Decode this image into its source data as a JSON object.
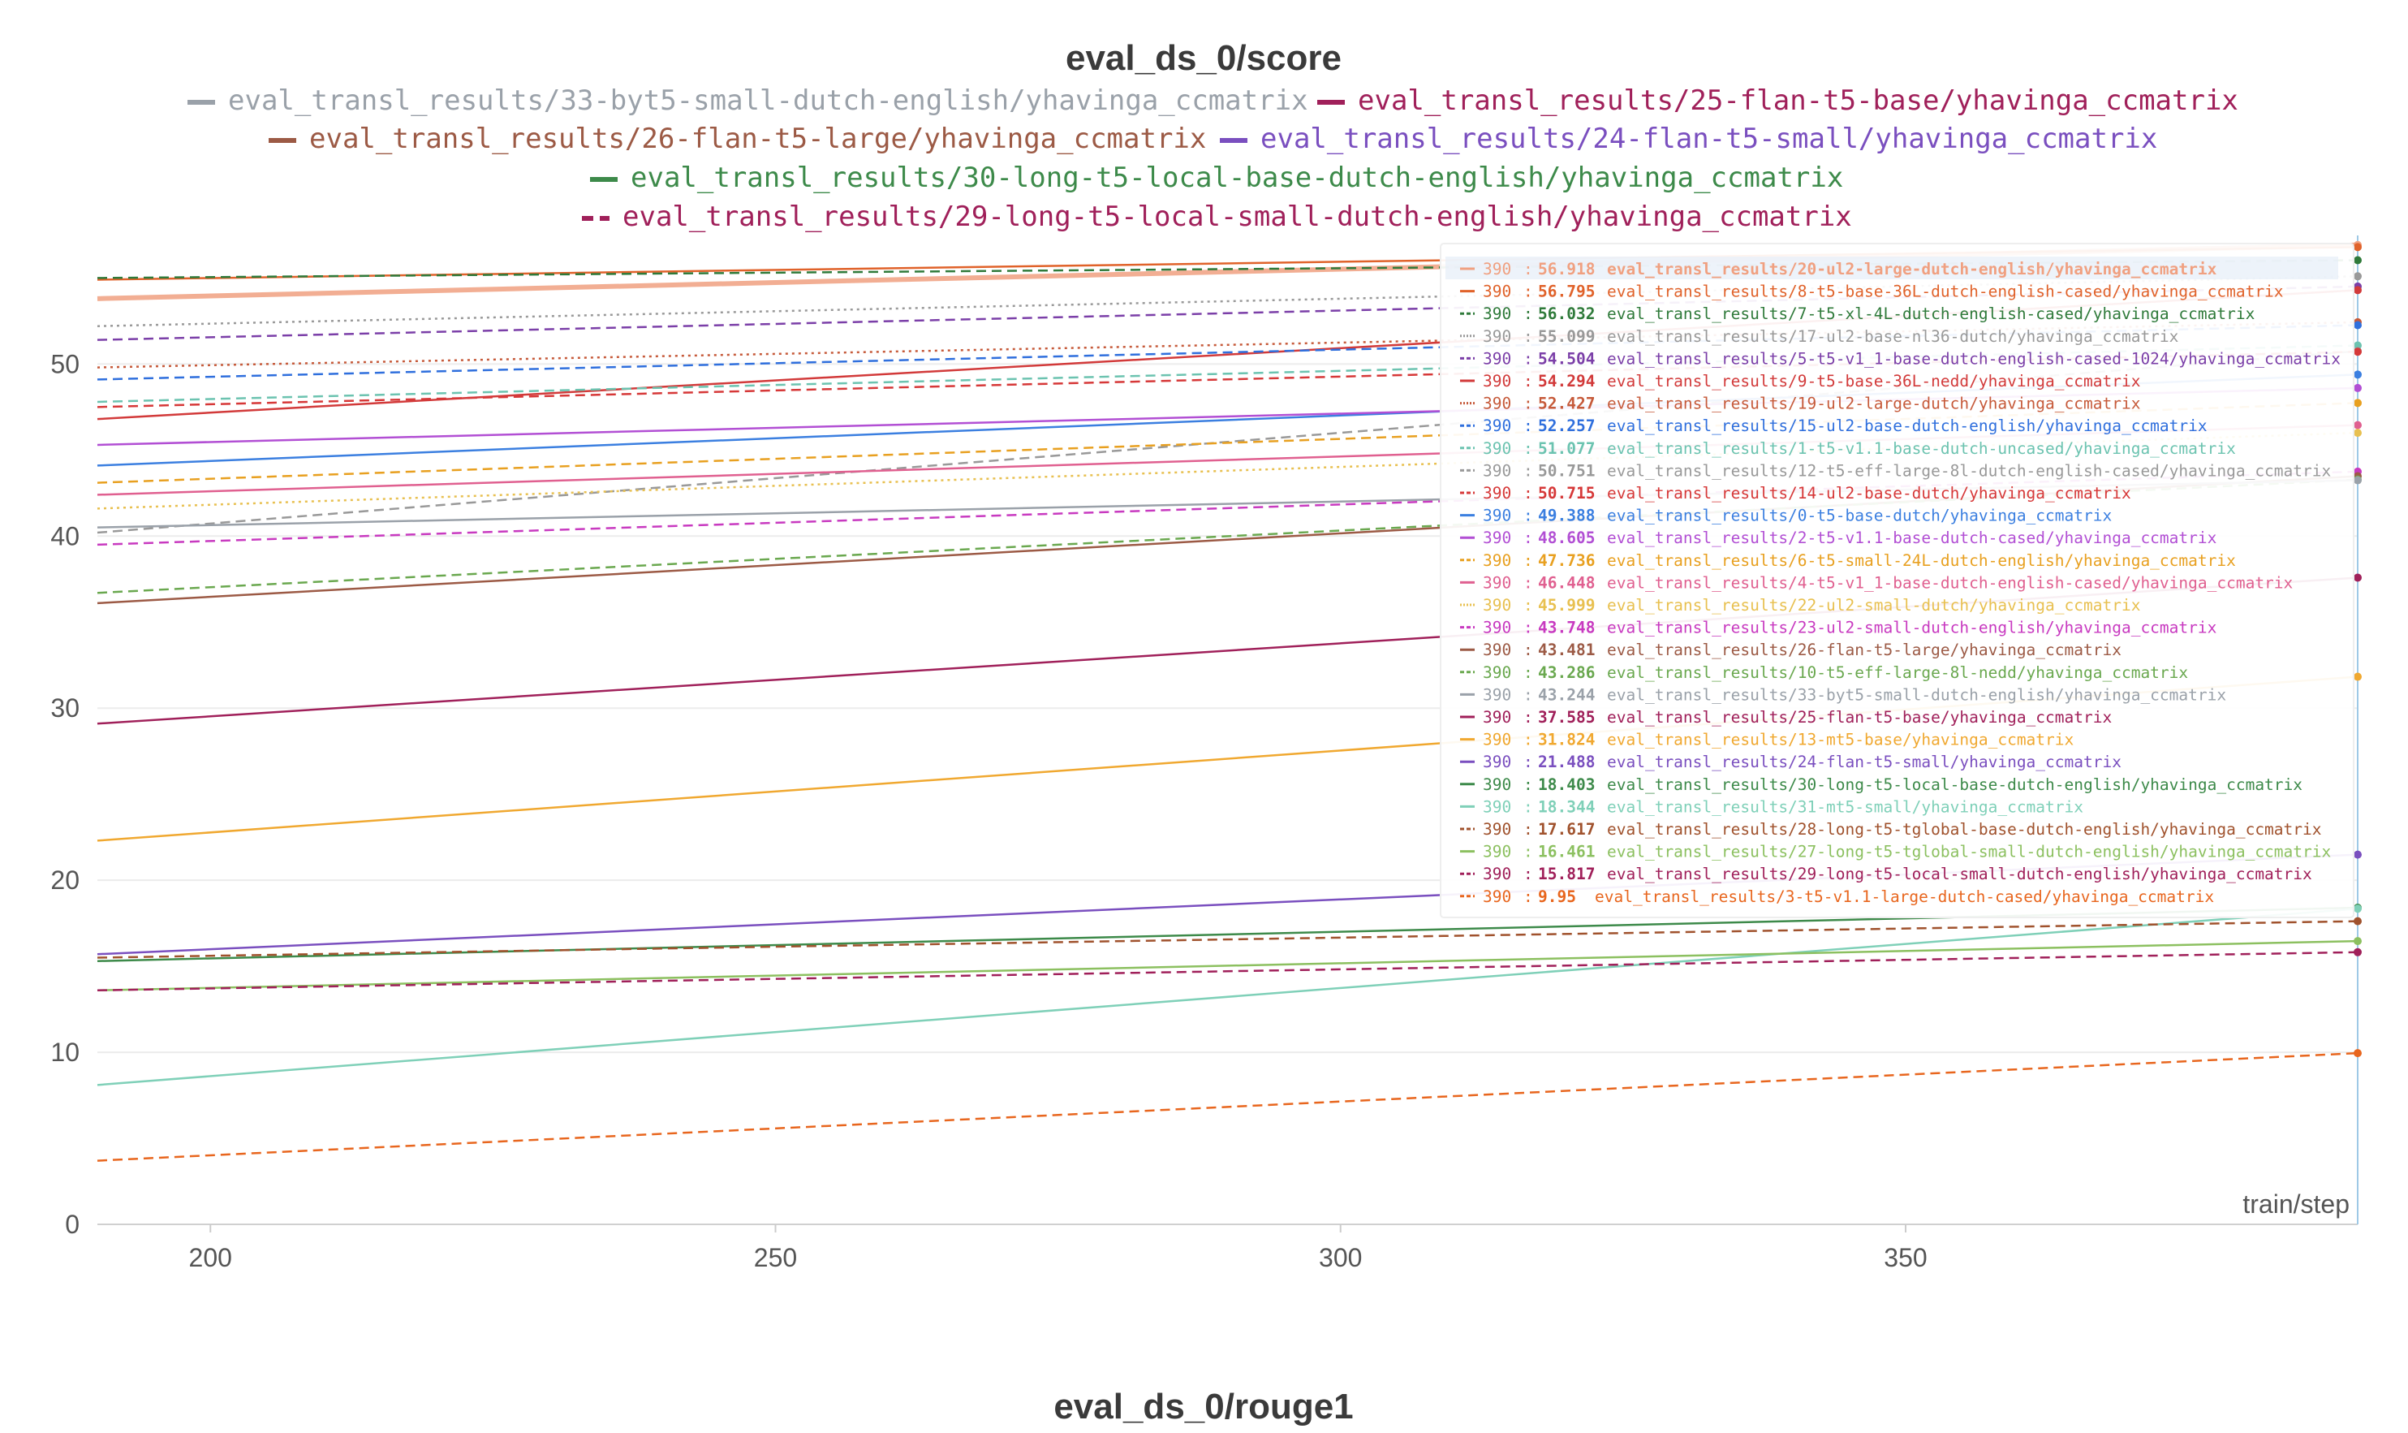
{
  "chart_data": {
    "type": "line",
    "title": "eval_ds_0/score",
    "xlabel": "train/step",
    "ylabel": "",
    "xlim": [
      190,
      390
    ],
    "ylim": [
      0,
      57
    ],
    "xticks": [
      200,
      250,
      300,
      350
    ],
    "yticks": [
      0,
      10,
      20,
      30,
      40,
      50
    ],
    "grid": true,
    "legend_position": "top",
    "tooltip_step": "390",
    "tooltip_position": "top-right",
    "legend": [
      {
        "name": "eval_transl_results/33-byt5-small-dutch-english/yhavinga_ccmatrix",
        "color": "#9aa1a9",
        "dash": "solid"
      },
      {
        "name": "eval_transl_results/25-flan-t5-base/yhavinga_ccmatrix",
        "color": "#a0205a",
        "dash": "solid"
      },
      {
        "name": "eval_transl_results/26-flan-t5-large/yhavinga_ccmatrix",
        "color": "#9c5a45",
        "dash": "solid"
      },
      {
        "name": "eval_transl_results/24-flan-t5-small/yhavinga_ccmatrix",
        "color": "#7a4fbf",
        "dash": "solid"
      },
      {
        "name": "eval_transl_results/30-long-t5-local-base-dutch-english/yhavinga_ccmatrix",
        "color": "#3d8a4a",
        "dash": "solid"
      },
      {
        "name": "eval_transl_results/29-long-t5-local-small-dutch-english/yhavinga_ccmatrix",
        "color": "#a0205a",
        "dash": "dashed"
      }
    ],
    "series": [
      {
        "name": "eval_transl_results/20-ul2-large-dutch-english/yhavinga_ccmatrix",
        "color": "#f0a080",
        "dash": "solid",
        "width": 6,
        "x": [
          190,
          390
        ],
        "values": [
          53.8,
          56.918
        ],
        "label": "56.918"
      },
      {
        "name": "eval_transl_results/8-t5-base-36L-dutch-english-cased/yhavinga_ccmatrix",
        "color": "#e0622a",
        "dash": "solid",
        "width": 2.5,
        "x": [
          190,
          390
        ],
        "values": [
          54.9,
          56.795
        ],
        "label": "56.795"
      },
      {
        "name": "eval_transl_results/7-t5-xl-4L-dutch-english-cased/yhavinga_ccmatrix",
        "color": "#2f7a3a",
        "dash": "dashed",
        "width": 2.5,
        "x": [
          190,
          390
        ],
        "values": [
          55.0,
          56.032
        ],
        "label": "56.032"
      },
      {
        "name": "eval_transl_results/17-ul2-base-nl36-dutch/yhavinga_ccmatrix",
        "color": "#999999",
        "dash": "dotted",
        "width": 2.5,
        "x": [
          190,
          390
        ],
        "values": [
          52.2,
          55.099
        ],
        "label": "55.099"
      },
      {
        "name": "eval_transl_results/5-t5-v1_1-base-dutch-english-cased-1024/yhavinga_ccmatrix",
        "color": "#7b3fa8",
        "dash": "dashed",
        "width": 2.5,
        "x": [
          190,
          390
        ],
        "values": [
          51.4,
          54.504
        ],
        "label": "54.504"
      },
      {
        "name": "eval_transl_results/9-t5-base-36L-nedd/yhavinga_ccmatrix",
        "color": "#d23a3a",
        "dash": "solid",
        "width": 2.5,
        "x": [
          190,
          390
        ],
        "values": [
          46.8,
          54.294
        ],
        "label": "54.294"
      },
      {
        "name": "eval_transl_results/19-ul2-large-dutch/yhavinga_ccmatrix",
        "color": "#c65a3a",
        "dash": "dotted",
        "width": 2.5,
        "x": [
          190,
          390
        ],
        "values": [
          49.8,
          52.427
        ],
        "label": "52.427"
      },
      {
        "name": "eval_transl_results/15-ul2-base-dutch-english/yhavinga_ccmatrix",
        "color": "#2f6fdd",
        "dash": "dashed",
        "width": 2.5,
        "x": [
          190,
          390
        ],
        "values": [
          49.1,
          52.257
        ],
        "label": "52.257"
      },
      {
        "name": "eval_transl_results/1-t5-v1.1-base-dutch-uncased/yhavinga_ccmatrix",
        "color": "#6cc3b0",
        "dash": "dashed",
        "width": 2.5,
        "x": [
          190,
          390
        ],
        "values": [
          47.8,
          51.077
        ],
        "label": "51.077"
      },
      {
        "name": "eval_transl_results/12-t5-eff-large-8l-dutch-english-cased/yhavinga_ccmatrix",
        "color": "#999999",
        "dash": "dashed",
        "width": 2.5,
        "x": [
          190,
          390
        ],
        "values": [
          40.2,
          50.751
        ],
        "label": "50.751"
      },
      {
        "name": "eval_transl_results/14-ul2-base-dutch/yhavinga_ccmatrix",
        "color": "#d63838",
        "dash": "dashed",
        "width": 2.5,
        "x": [
          190,
          390
        ],
        "values": [
          47.5,
          50.715
        ],
        "label": "50.715"
      },
      {
        "name": "eval_transl_results/0-t5-base-dutch/yhavinga_ccmatrix",
        "color": "#3b7fe0",
        "dash": "solid",
        "width": 2.5,
        "x": [
          190,
          390
        ],
        "values": [
          44.1,
          49.388
        ],
        "label": "49.388"
      },
      {
        "name": "eval_transl_results/2-t5-v1.1-base-dutch-cased/yhavinga_ccmatrix",
        "color": "#b24fd4",
        "dash": "solid",
        "width": 2.5,
        "x": [
          190,
          390
        ],
        "values": [
          45.3,
          48.605
        ],
        "label": "48.605"
      },
      {
        "name": "eval_transl_results/6-t5-small-24L-dutch-english/yhavinga_ccmatrix",
        "color": "#e8a020",
        "dash": "dashed",
        "width": 2.5,
        "x": [
          190,
          390
        ],
        "values": [
          43.1,
          47.736
        ],
        "label": "47.736"
      },
      {
        "name": "eval_transl_results/4-t5-v1_1-base-dutch-english-cased/yhavinga_ccmatrix",
        "color": "#e06090",
        "dash": "solid",
        "width": 2.5,
        "x": [
          190,
          390
        ],
        "values": [
          42.4,
          46.448
        ],
        "label": "46.448"
      },
      {
        "name": "eval_transl_results/22-ul2-small-dutch/yhavinga_ccmatrix",
        "color": "#e8c050",
        "dash": "dotted",
        "width": 2.5,
        "x": [
          190,
          390
        ],
        "values": [
          41.6,
          45.999
        ],
        "label": "45.999"
      },
      {
        "name": "eval_transl_results/23-ul2-small-dutch-english/yhavinga_ccmatrix",
        "color": "#c83ac0",
        "dash": "dashed",
        "width": 2.5,
        "x": [
          190,
          390
        ],
        "values": [
          39.5,
          43.748
        ],
        "label": "43.748"
      },
      {
        "name": "eval_transl_results/26-flan-t5-large/yhavinga_ccmatrix",
        "color": "#9c5a45",
        "dash": "solid",
        "width": 2.5,
        "x": [
          190,
          390
        ],
        "values": [
          36.1,
          43.481
        ],
        "label": "43.481"
      },
      {
        "name": "eval_transl_results/10-t5-eff-large-8l-nedd/yhavinga_ccmatrix",
        "color": "#6aa84f",
        "dash": "dashed",
        "width": 2.5,
        "x": [
          190,
          390
        ],
        "values": [
          36.7,
          43.286
        ],
        "label": "43.286"
      },
      {
        "name": "eval_transl_results/33-byt5-small-dutch-english/yhavinga_ccmatrix",
        "color": "#9aa1a9",
        "dash": "solid",
        "width": 2.5,
        "x": [
          190,
          390
        ],
        "values": [
          40.5,
          43.244
        ],
        "label": "43.244"
      },
      {
        "name": "eval_transl_results/25-flan-t5-base/yhavinga_ccmatrix",
        "color": "#a0205a",
        "dash": "solid",
        "width": 2.5,
        "x": [
          190,
          390
        ],
        "values": [
          29.1,
          37.585
        ],
        "label": "37.585"
      },
      {
        "name": "eval_transl_results/13-mt5-base/yhavinga_ccmatrix",
        "color": "#f0a830",
        "dash": "solid",
        "width": 2.5,
        "x": [
          190,
          390
        ],
        "values": [
          22.3,
          31.824
        ],
        "label": "31.824"
      },
      {
        "name": "eval_transl_results/24-flan-t5-small/yhavinga_ccmatrix",
        "color": "#7a4fbf",
        "dash": "solid",
        "width": 2.5,
        "x": [
          190,
          390
        ],
        "values": [
          15.7,
          21.488
        ],
        "label": "21.488"
      },
      {
        "name": "eval_transl_results/30-long-t5-local-base-dutch-english/yhavinga_ccmatrix",
        "color": "#3d8a4a",
        "dash": "solid",
        "width": 2.5,
        "x": [
          190,
          390
        ],
        "values": [
          15.3,
          18.403
        ],
        "label": "18.403"
      },
      {
        "name": "eval_transl_results/31-mt5-small/yhavinga_ccmatrix",
        "color": "#7fd0b8",
        "dash": "solid",
        "width": 2.5,
        "x": [
          190,
          390
        ],
        "values": [
          8.1,
          18.344
        ],
        "label": "18.344"
      },
      {
        "name": "eval_transl_results/28-long-t5-tglobal-base-dutch-english/yhavinga_ccmatrix",
        "color": "#a0522d",
        "dash": "dashed",
        "width": 2.5,
        "x": [
          190,
          390
        ],
        "values": [
          15.5,
          17.617
        ],
        "label": "17.617"
      },
      {
        "name": "eval_transl_results/27-long-t5-tglobal-small-dutch-english/yhavinga_ccmatrix",
        "color": "#8cc060",
        "dash": "solid",
        "width": 2.5,
        "x": [
          190,
          390
        ],
        "values": [
          13.6,
          16.461
        ],
        "label": "16.461"
      },
      {
        "name": "eval_transl_results/29-long-t5-local-small-dutch-english/yhavinga_ccmatrix",
        "color": "#a0205a",
        "dash": "dashed",
        "width": 2.5,
        "x": [
          190,
          390
        ],
        "values": [
          13.6,
          15.817
        ],
        "label": "15.817"
      },
      {
        "name": "eval_transl_results/3-t5-v1.1-large-dutch-cased/yhavinga_ccmatrix",
        "color": "#e8661e",
        "dash": "dashed",
        "width": 2.5,
        "x": [
          190,
          390
        ],
        "values": [
          3.7,
          9.95
        ],
        "label": "9.95"
      }
    ]
  },
  "next_chart": {
    "title": "eval_ds_0/rouge1"
  }
}
